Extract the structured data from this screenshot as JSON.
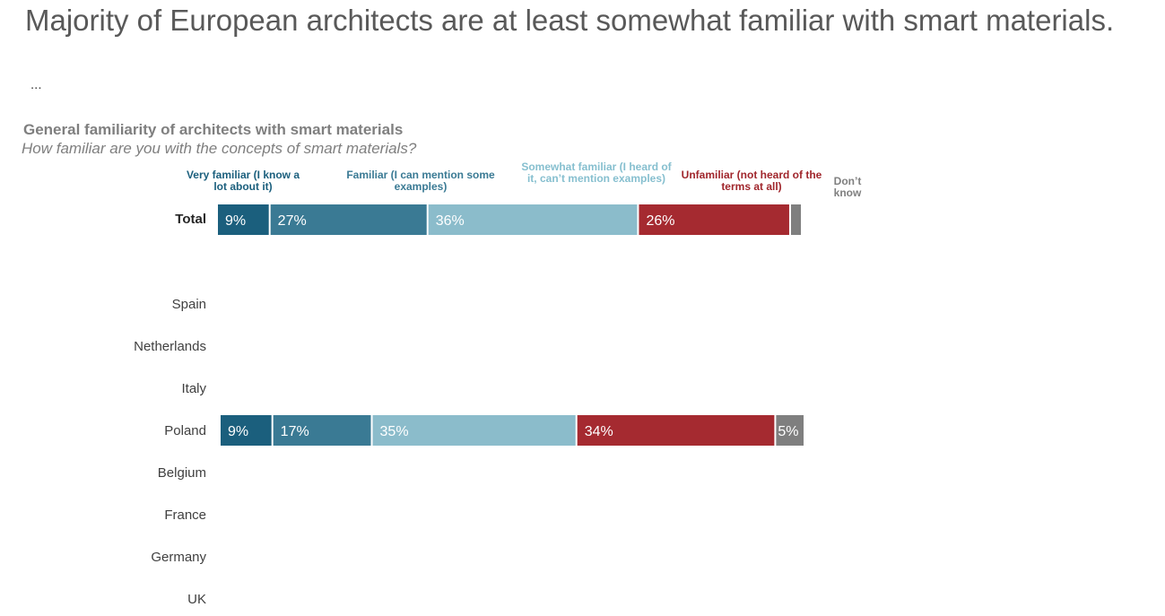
{
  "headline": "Majority of European architects are at least somewhat familiar with smart materials.",
  "ellipsis": "...",
  "chart_data": {
    "type": "bar",
    "orientation": "horizontal",
    "stacked": true,
    "title": "General familiarity of architects with smart materials",
    "subtitle": "How familiar are you with the concepts of smart materials?",
    "legend_position": "top",
    "categories": [
      "Total",
      "Spain",
      "Netherlands",
      "Italy",
      "Poland",
      "Belgium",
      "France",
      "Germany",
      "UK"
    ],
    "series": [
      {
        "name": "Very familiar (I know a lot about it)",
        "color": "#1b5f7d",
        "values": [
          9,
          null,
          null,
          null,
          9,
          null,
          null,
          null,
          null
        ],
        "labels": [
          "9%",
          "",
          "",
          "",
          "9%",
          "",
          "",
          "",
          ""
        ]
      },
      {
        "name": "Familiar (I can mention some examples)",
        "color": "#3a7a94",
        "values": [
          27,
          null,
          null,
          null,
          17,
          null,
          null,
          null,
          null
        ],
        "labels": [
          "27%",
          "",
          "",
          "",
          "17%",
          "",
          "",
          "",
          ""
        ]
      },
      {
        "name": "Somewhat familiar (I heard of it, can’t mention examples)",
        "color": "#8bbccb",
        "values": [
          36,
          null,
          null,
          null,
          35,
          null,
          null,
          null,
          null
        ],
        "labels": [
          "36%",
          "",
          "",
          "",
          "35%",
          "",
          "",
          "",
          ""
        ]
      },
      {
        "name": "Unfamiliar (not heard of the terms at all)",
        "color": "#a52a30",
        "values": [
          26,
          null,
          null,
          null,
          34,
          null,
          null,
          null,
          null
        ],
        "labels": [
          "26%",
          "",
          "",
          "",
          "34%",
          "",
          "",
          "",
          ""
        ]
      },
      {
        "name": "Don’t know",
        "color": "#7f7f7f",
        "values": [
          2,
          null,
          null,
          null,
          5,
          null,
          null,
          null,
          null
        ],
        "labels": [
          "",
          "",
          "",
          "",
          "5%",
          "",
          "",
          "",
          ""
        ]
      }
    ],
    "xlim": [
      0,
      100
    ],
    "grid": false
  }
}
